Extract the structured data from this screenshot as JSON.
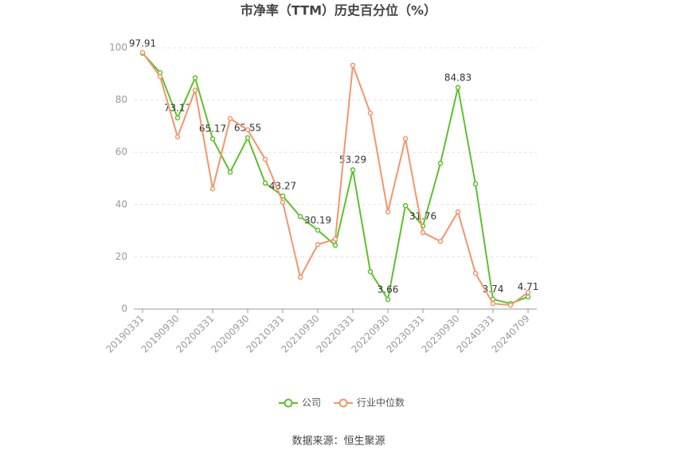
{
  "chart_data": {
    "type": "line",
    "title": "市净率（TTM）历史百分位（%）",
    "categories": [
      "20190331",
      null,
      "20190930",
      null,
      "20200331",
      null,
      "20200930",
      null,
      "20210331",
      null,
      "20210930",
      null,
      "20220331",
      null,
      "20220930",
      null,
      "20230331",
      null,
      "20230930",
      null,
      "20240331",
      null,
      "20240709"
    ],
    "series": [
      {
        "name": "公司",
        "color": "#5cc12b",
        "values": [
          97.91,
          90.5,
          73.17,
          88.5,
          65.17,
          52.4,
          65.55,
          48.2,
          43.27,
          35.4,
          30.19,
          24.4,
          53.29,
          14.3,
          3.66,
          39.6,
          31.76,
          55.8,
          84.83,
          47.9,
          3.74,
          2.1,
          4.71
        ],
        "value_labels": [
          "97.91",
          null,
          "73.17",
          null,
          "65.17",
          null,
          "65.55",
          null,
          "43.27",
          null,
          "30.19",
          null,
          "53.29",
          null,
          "3.66",
          null,
          "31.76",
          null,
          "84.83",
          null,
          "3.74",
          null,
          "4.71"
        ]
      },
      {
        "name": "行业中位数",
        "color": "#f5946a",
        "values": [
          98.2,
          89,
          65.9,
          83.8,
          46,
          72.9,
          68.6,
          57.3,
          40.9,
          12.2,
          24.7,
          26.8,
          93.3,
          75,
          37.2,
          65.2,
          29.3,
          25.9,
          37.2,
          13.7,
          2.1,
          1.5,
          6.4
        ]
      }
    ],
    "ylim": [
      0,
      100
    ],
    "yticks": [
      0,
      20,
      40,
      60,
      80,
      100
    ],
    "grid": true,
    "legend": "bottom",
    "source": "数据来源：恒生聚源"
  }
}
